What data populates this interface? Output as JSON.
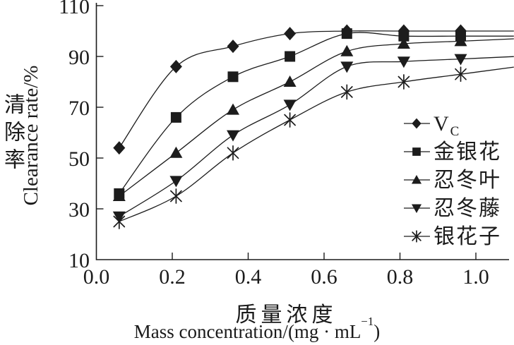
{
  "chart_data": {
    "type": "line",
    "title": "",
    "xlabel_zh": "质量浓度",
    "xlabel_en_pre": "Mass concentration/(mg · mL",
    "xlabel_en_sup": "−1",
    "xlabel_en_post": ")",
    "ylabel_zh": "清除率",
    "ylabel_en": "Clearance rate/%",
    "x": [
      0.06,
      0.21,
      0.36,
      0.51,
      0.66,
      0.81,
      0.96
    ],
    "series": [
      {
        "legend": "V",
        "legend_sub": "C",
        "marker": "diamond",
        "values": [
          54,
          86,
          94,
          99,
          100,
          100,
          100
        ]
      },
      {
        "legend": "金银花",
        "legend_sub": "",
        "marker": "square",
        "values": [
          36,
          66,
          82,
          90,
          99,
          98,
          98
        ]
      },
      {
        "legend": "忍冬叶",
        "legend_sub": "",
        "marker": "triangle-up",
        "values": [
          35,
          52,
          69,
          80,
          92,
          95,
          96
        ]
      },
      {
        "legend": "忍冬藤",
        "legend_sub": "",
        "marker": "triangle-down",
        "values": [
          27,
          41,
          59,
          71,
          86,
          88,
          89
        ]
      },
      {
        "legend": "银花子",
        "legend_sub": "",
        "marker": "asterisk",
        "values": [
          25,
          35,
          52,
          65,
          76,
          80,
          83
        ]
      }
    ],
    "xticks": [
      0,
      0.2,
      0.4,
      0.6,
      0.8,
      1.0
    ],
    "xtick_labels": [
      "0.0",
      "0.2",
      "0.4",
      "0.6",
      "0.8",
      "1.0"
    ],
    "yticks": [
      10,
      30,
      50,
      70,
      90,
      110
    ],
    "ytick_labels": [
      "10",
      "30",
      "50",
      "70",
      "90",
      "110"
    ],
    "xlim": [
      0,
      1.1
    ],
    "ylim": [
      10,
      110
    ],
    "grid": false,
    "legend_position": "right-center",
    "line_color": "#1c1c1c",
    "lines_extend_past_last_point": true
  }
}
